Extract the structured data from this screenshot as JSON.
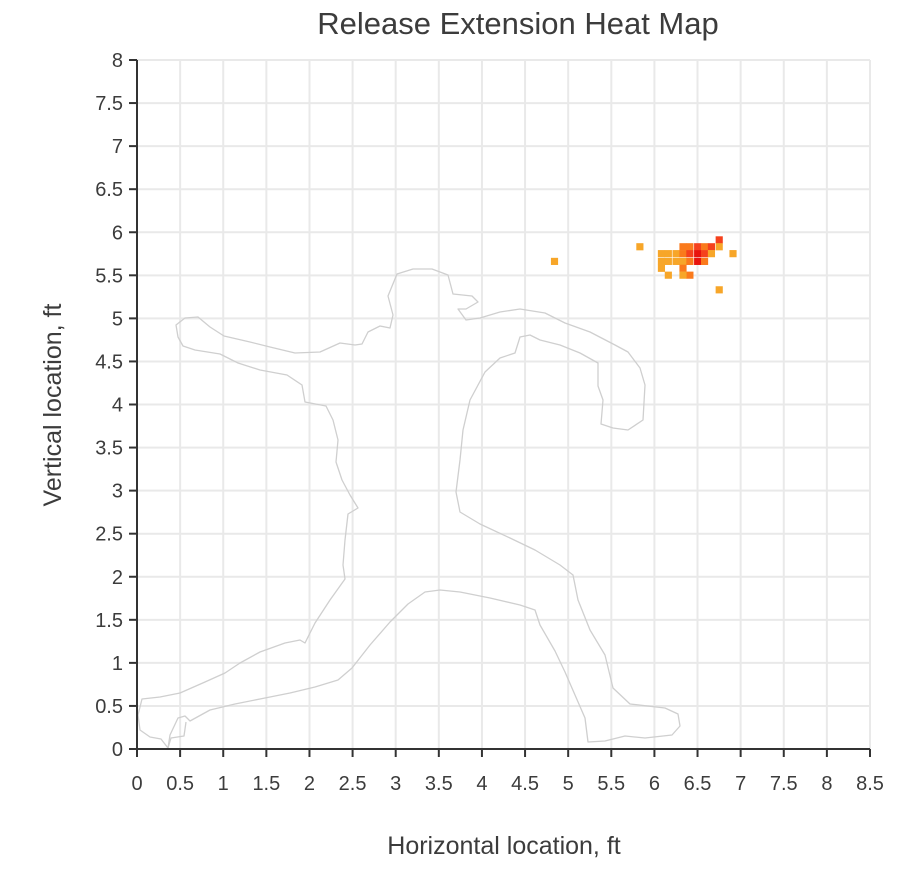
{
  "chart_data": {
    "type": "heatmap",
    "title": "Release Extension Heat Map",
    "xlabel": "Horizontal location, ft",
    "ylabel": "Vertical location, ft",
    "xlim": [
      0,
      8.5
    ],
    "ylim": [
      0,
      8
    ],
    "xticks": [
      "0",
      "0.5",
      "1",
      "1.5",
      "2",
      "2.5",
      "3",
      "3.5",
      "4",
      "4.5",
      "5",
      "5.5",
      "6",
      "6.5",
      "7",
      "7.5",
      "8",
      "8.5"
    ],
    "yticks": [
      "0",
      "0.5",
      "1",
      "1.5",
      "2",
      "2.5",
      "3",
      "3.5",
      "4",
      "4.5",
      "5",
      "5.5",
      "6",
      "6.5",
      "7",
      "7.5",
      "8"
    ],
    "grid": true,
    "cell_size_ft": 0.083,
    "colors": {
      "low": "#f7a629",
      "mid": "#fa7a1c",
      "high": "#f5411d",
      "max": "#e8130e"
    },
    "cells": [
      {
        "x": 4.8,
        "y": 5.62,
        "level": "low"
      },
      {
        "x": 5.79,
        "y": 5.79,
        "level": "low"
      },
      {
        "x": 6.71,
        "y": 5.29,
        "level": "low"
      },
      {
        "x": 6.87,
        "y": 5.71,
        "level": "low"
      },
      {
        "x": 6.04,
        "y": 5.71,
        "level": "low"
      },
      {
        "x": 6.12,
        "y": 5.71,
        "level": "low"
      },
      {
        "x": 6.21,
        "y": 5.71,
        "level": "low"
      },
      {
        "x": 6.04,
        "y": 5.62,
        "level": "low"
      },
      {
        "x": 6.12,
        "y": 5.62,
        "level": "low"
      },
      {
        "x": 6.21,
        "y": 5.62,
        "level": "low"
      },
      {
        "x": 6.04,
        "y": 5.54,
        "level": "low"
      },
      {
        "x": 6.12,
        "y": 5.46,
        "level": "low"
      },
      {
        "x": 6.29,
        "y": 5.79,
        "level": "mid"
      },
      {
        "x": 6.37,
        "y": 5.79,
        "level": "mid"
      },
      {
        "x": 6.29,
        "y": 5.71,
        "level": "mid"
      },
      {
        "x": 6.29,
        "y": 5.62,
        "level": "low"
      },
      {
        "x": 6.29,
        "y": 5.54,
        "level": "mid"
      },
      {
        "x": 6.37,
        "y": 5.62,
        "level": "mid"
      },
      {
        "x": 6.37,
        "y": 5.71,
        "level": "high"
      },
      {
        "x": 6.46,
        "y": 5.79,
        "level": "high"
      },
      {
        "x": 6.46,
        "y": 5.71,
        "level": "max"
      },
      {
        "x": 6.46,
        "y": 5.62,
        "level": "max"
      },
      {
        "x": 6.54,
        "y": 5.79,
        "level": "mid"
      },
      {
        "x": 6.54,
        "y": 5.71,
        "level": "high"
      },
      {
        "x": 6.54,
        "y": 5.62,
        "level": "mid"
      },
      {
        "x": 6.62,
        "y": 5.79,
        "level": "high"
      },
      {
        "x": 6.62,
        "y": 5.71,
        "level": "low"
      },
      {
        "x": 6.71,
        "y": 5.87,
        "level": "high"
      },
      {
        "x": 6.71,
        "y": 5.79,
        "level": "low"
      },
      {
        "x": 6.37,
        "y": 5.46,
        "level": "mid"
      },
      {
        "x": 6.29,
        "y": 5.46,
        "level": "low"
      }
    ]
  }
}
